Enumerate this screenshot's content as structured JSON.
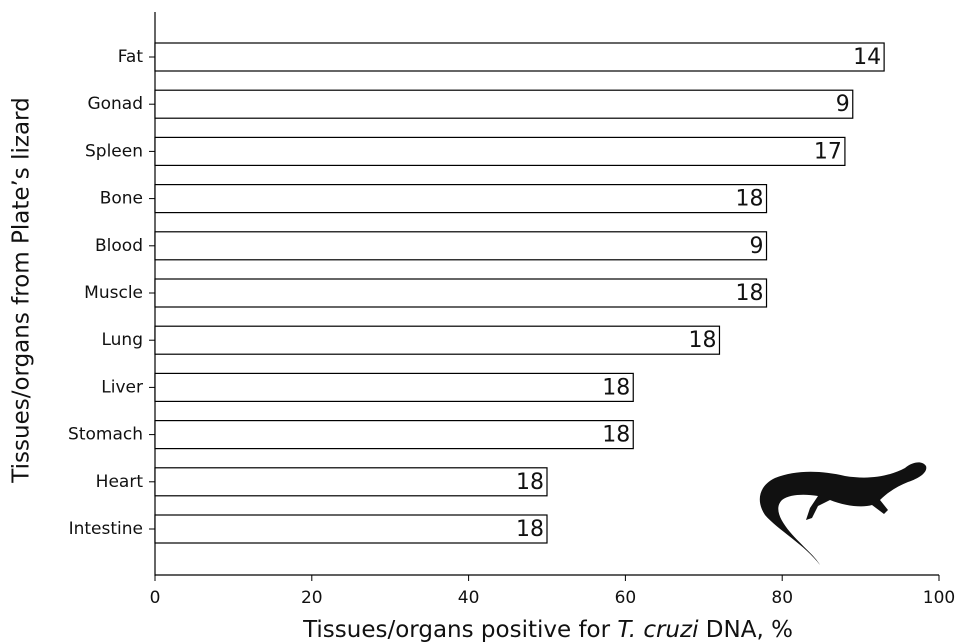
{
  "chart_data": {
    "type": "bar",
    "orientation": "horizontal",
    "x_label_parts": [
      "Tissues/organs positive for ",
      "T. cruzi",
      " DNA, %"
    ],
    "y_label": "Tissues/organs from Plate’s lizard",
    "categories": [
      "Fat",
      "Gonad",
      "Spleen",
      "Bone",
      "Blood",
      "Muscle",
      "Lung",
      "Liver",
      "Stomach",
      "Heart",
      "Intestine"
    ],
    "values": [
      93,
      89,
      88,
      78,
      78,
      78,
      72,
      61,
      61,
      50,
      50
    ],
    "bar_labels": [
      14,
      9,
      17,
      18,
      9,
      18,
      18,
      18,
      18,
      18,
      18
    ],
    "color": "#ffffff",
    "edge_color": "#000000",
    "xlim": [
      0,
      100
    ],
    "xticks": [
      0,
      20,
      40,
      60,
      80,
      100
    ]
  }
}
